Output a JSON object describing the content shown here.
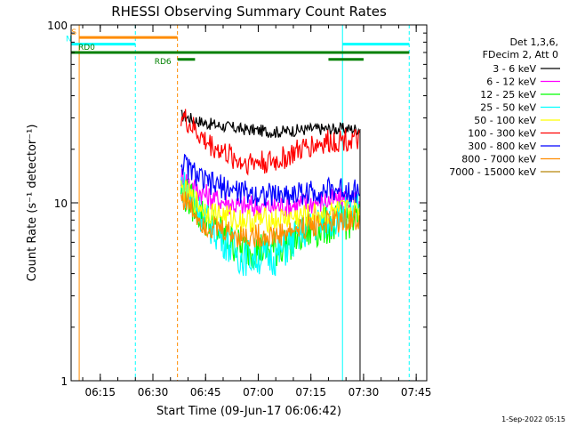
{
  "chart_data": {
    "type": "line",
    "title": "RHESSI Observing Summary Count Rates",
    "xlabel": "Start Time (09-Jun-17 06:06:42)",
    "ylabel": "Count Rate (s⁻¹ detector⁻¹)",
    "yscale": "log",
    "ylim": [
      1,
      100
    ],
    "xlim": [
      "06:06:42",
      "07:48:00"
    ],
    "x_ticks": [
      "06:15",
      "06:30",
      "06:45",
      "07:00",
      "07:15",
      "07:30",
      "07:45"
    ],
    "y_ticks": [
      "1",
      "10",
      "100"
    ],
    "legend_header": [
      "Det 1,3,6,",
      "FDecim 2, Att 0"
    ],
    "legend_position": "right",
    "timestamp": "1-Sep-2022 05:15",
    "series": [
      {
        "name": "3 - 6 keV",
        "color": "#000000",
        "t": [
          "06:38",
          "06:45",
          "06:55",
          "07:05",
          "07:15",
          "07:25",
          "07:29"
        ],
        "values": [
          31,
          28,
          26,
          25,
          26,
          26,
          26
        ]
      },
      {
        "name": "6 - 12 keV",
        "color": "#ff00ff",
        "t": [
          "06:38",
          "06:45",
          "06:55",
          "07:05",
          "07:15",
          "07:25",
          "07:29"
        ],
        "values": [
          14,
          11,
          9.5,
          9.5,
          10,
          10.5,
          10
        ]
      },
      {
        "name": "12 - 25 keV",
        "color": "#00ff00",
        "t": [
          "06:38",
          "06:45",
          "06:55",
          "07:05",
          "07:15",
          "07:25",
          "07:29"
        ],
        "values": [
          12,
          8,
          5.5,
          5.5,
          7,
          8,
          8
        ]
      },
      {
        "name": "25 - 50 keV",
        "color": "#00ffff",
        "t": [
          "06:38",
          "06:45",
          "06:55",
          "07:05",
          "07:15",
          "07:25",
          "07:29"
        ],
        "values": [
          13,
          8,
          5,
          5,
          7.5,
          8.5,
          9
        ]
      },
      {
        "name": "50 - 100 keV",
        "color": "#ffff00",
        "t": [
          "06:38",
          "06:45",
          "06:55",
          "07:05",
          "07:15",
          "07:25",
          "07:29"
        ],
        "values": [
          12,
          9,
          8,
          8,
          8.5,
          9,
          9
        ]
      },
      {
        "name": "100 - 300 keV",
        "color": "#ff0000",
        "t": [
          "06:38",
          "06:45",
          "06:55",
          "07:05",
          "07:15",
          "07:25",
          "07:29"
        ],
        "values": [
          31,
          22,
          17,
          17,
          21,
          23,
          22
        ]
      },
      {
        "name": "300 - 800 keV",
        "color": "#0000ff",
        "t": [
          "06:38",
          "06:45",
          "06:55",
          "07:05",
          "07:15",
          "07:25",
          "07:29"
        ],
        "values": [
          17,
          13,
          11.5,
          11,
          11.5,
          12,
          11.5
        ]
      },
      {
        "name": "800 - 7000 keV",
        "color": "#ff8c00",
        "t": [
          "06:38",
          "06:45",
          "06:55",
          "07:05",
          "07:15",
          "07:25",
          "07:29"
        ],
        "values": [
          11,
          7.5,
          6.5,
          6.5,
          7.5,
          8,
          8
        ]
      },
      {
        "name": "7000 - 15000 keV",
        "color": "#b8860b",
        "t": [],
        "values": []
      }
    ],
    "annotations": [
      {
        "label": "S",
        "kind": "state_bar",
        "color": "#ff8c00",
        "t_start": "06:09",
        "t_end": "06:37",
        "value": 85
      },
      {
        "label": "N",
        "kind": "state_bar",
        "color": "#00ffff",
        "t_start": "06:06:42",
        "t_end": "06:25",
        "value": 78
      },
      {
        "label": "",
        "kind": "state_bar",
        "color": "#00ffff",
        "t_start": "07:24",
        "t_end": "07:43",
        "value": 78
      },
      {
        "label": "RD0",
        "kind": "state_bar",
        "color": "#008000",
        "t_start": "06:06:42",
        "t_end": "07:43",
        "value": 70
      },
      {
        "label": "RD6",
        "kind": "state_bar",
        "color": "#008000",
        "t_start": "06:37",
        "t_end": "06:42",
        "value": 64
      },
      {
        "label": "",
        "kind": "state_bar",
        "color": "#008000",
        "t_start": "07:20",
        "t_end": "07:30",
        "value": 64
      },
      {
        "label": "",
        "kind": "vline",
        "color": "#ff8c00",
        "style": "solid",
        "t": "06:09"
      },
      {
        "label": "",
        "kind": "vline",
        "color": "#ff8c00",
        "style": "dashed",
        "t": "06:37"
      },
      {
        "label": "",
        "kind": "vline",
        "color": "#00ffff",
        "style": "dashed",
        "t": "06:25"
      },
      {
        "label": "",
        "kind": "vline",
        "color": "#00ffff",
        "style": "solid",
        "t": "07:24"
      },
      {
        "label": "",
        "kind": "vline",
        "color": "#00ffff",
        "style": "dashed",
        "t": "07:43"
      },
      {
        "label": "",
        "kind": "vline",
        "color": "#00ffff",
        "style": "solid",
        "t": "06:06:42"
      }
    ]
  }
}
